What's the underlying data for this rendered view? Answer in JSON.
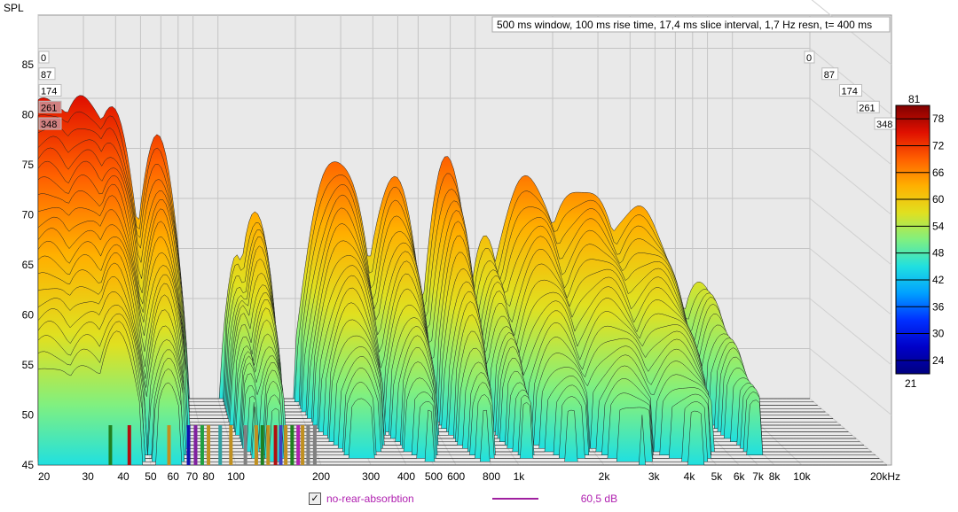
{
  "chart_data": {
    "type": "waterfall",
    "title": "500 ms window, 100 ms rise time, 17,4 ms slice interval, 1,7 Hz resn, t= 400 ms",
    "ylabel": "SPL",
    "xlabel": "Hz",
    "ylim": [
      45,
      90
    ],
    "y_ticks": [
      "45",
      "50",
      "55",
      "60",
      "65",
      "70",
      "75",
      "80",
      "85"
    ],
    "x_ticks": [
      {
        "f": 20,
        "label": "20"
      },
      {
        "f": 30,
        "label": "30"
      },
      {
        "f": 40,
        "label": "40"
      },
      {
        "f": 50,
        "label": "50"
      },
      {
        "f": 60,
        "label": "60"
      },
      {
        "f": 70,
        "label": "70"
      },
      {
        "f": 80,
        "label": "80"
      },
      {
        "f": 100,
        "label": "100"
      },
      {
        "f": 200,
        "label": "200"
      },
      {
        "f": 300,
        "label": "300"
      },
      {
        "f": 400,
        "label": "400"
      },
      {
        "f": 500,
        "label": "500"
      },
      {
        "f": 600,
        "label": "600"
      },
      {
        "f": 800,
        "label": "800"
      },
      {
        "f": 1000,
        "label": "1k"
      },
      {
        "f": 2000,
        "label": "2k"
      },
      {
        "f": 3000,
        "label": "3k"
      },
      {
        "f": 4000,
        "label": "4k"
      },
      {
        "f": 5000,
        "label": "5k"
      },
      {
        "f": 6000,
        "label": "6k"
      },
      {
        "f": 7000,
        "label": "7k"
      },
      {
        "f": 8000,
        "label": "8k"
      },
      {
        "f": 10000,
        "label": "10k"
      },
      {
        "f": 20000,
        "label": "20kHz"
      }
    ],
    "slice_interval_ms": 17.4,
    "slice_count": 21,
    "time_labels": [
      "0",
      "87",
      "174",
      "261",
      "348"
    ],
    "colorbar": {
      "min": "21",
      "max": "81",
      "ticks": [
        "78",
        "72",
        "66",
        "60",
        "54",
        "48",
        "42",
        "36",
        "30",
        "24"
      ]
    },
    "resonances": [
      {
        "freq": 22,
        "spl": 75,
        "decay_db_per_slice": 1.0,
        "width": 0.09
      },
      {
        "freq": 30,
        "spl": 75,
        "decay_db_per_slice": 1.0,
        "width": 0.08
      },
      {
        "freq": 38,
        "spl": 74,
        "decay_db_per_slice": 0.8,
        "width": 0.05
      },
      {
        "freq": 58,
        "spl": 71,
        "decay_db_per_slice": 0.9,
        "width": 0.04
      },
      {
        "freq": 118,
        "spl": 59,
        "decay_db_per_slice": 0.5,
        "width": 0.03
      },
      {
        "freq": 140,
        "spl": 64,
        "decay_db_per_slice": 0.7,
        "width": 0.035
      },
      {
        "freq": 290,
        "spl": 69,
        "decay_db_per_slice": 1.0,
        "width": 0.06
      },
      {
        "freq": 480,
        "spl": 67,
        "decay_db_per_slice": 0.9,
        "width": 0.05
      },
      {
        "freq": 780,
        "spl": 69,
        "decay_db_per_slice": 1.0,
        "width": 0.04
      },
      {
        "freq": 1100,
        "spl": 61,
        "decay_db_per_slice": 0.6,
        "width": 0.04
      },
      {
        "freq": 1600,
        "spl": 67,
        "decay_db_per_slice": 0.9,
        "width": 0.07
      },
      {
        "freq": 2600,
        "spl": 66,
        "decay_db_per_slice": 0.8,
        "width": 0.09
      },
      {
        "freq": 4200,
        "spl": 64,
        "decay_db_per_slice": 0.7,
        "width": 0.09
      },
      {
        "freq": 7500,
        "spl": 57,
        "decay_db_per_slice": 0.4,
        "width": 0.05
      }
    ],
    "mode_markers": [
      {
        "freq": 36,
        "color": "#208020"
      },
      {
        "freq": 42,
        "color": "#b01010"
      },
      {
        "freq": 58,
        "color": "#c09020"
      },
      {
        "freq": 68,
        "color": "#1010b0"
      },
      {
        "freq": 72,
        "color": "#8020a0"
      },
      {
        "freq": 76,
        "color": "#20a040"
      },
      {
        "freq": 80,
        "color": "#c09020"
      },
      {
        "freq": 88,
        "color": "#30a0a0"
      },
      {
        "freq": 96,
        "color": "#c09020"
      },
      {
        "freq": 108,
        "color": "#808080"
      },
      {
        "freq": 118,
        "color": "#c09020"
      },
      {
        "freq": 124,
        "color": "#208020"
      },
      {
        "freq": 130,
        "color": "#c09020"
      },
      {
        "freq": 138,
        "color": "#b01010"
      },
      {
        "freq": 144,
        "color": "#4040c0"
      },
      {
        "freq": 150,
        "color": "#c09020"
      },
      {
        "freq": 158,
        "color": "#208020"
      },
      {
        "freq": 166,
        "color": "#b020b0"
      },
      {
        "freq": 172,
        "color": "#c09020"
      },
      {
        "freq": 180,
        "color": "#808080"
      },
      {
        "freq": 190,
        "color": "#808080"
      }
    ]
  },
  "legend": {
    "checked": "✓",
    "label": "no-rear-absorbtion",
    "value": "60,5 dB",
    "color": "#a020a0"
  }
}
